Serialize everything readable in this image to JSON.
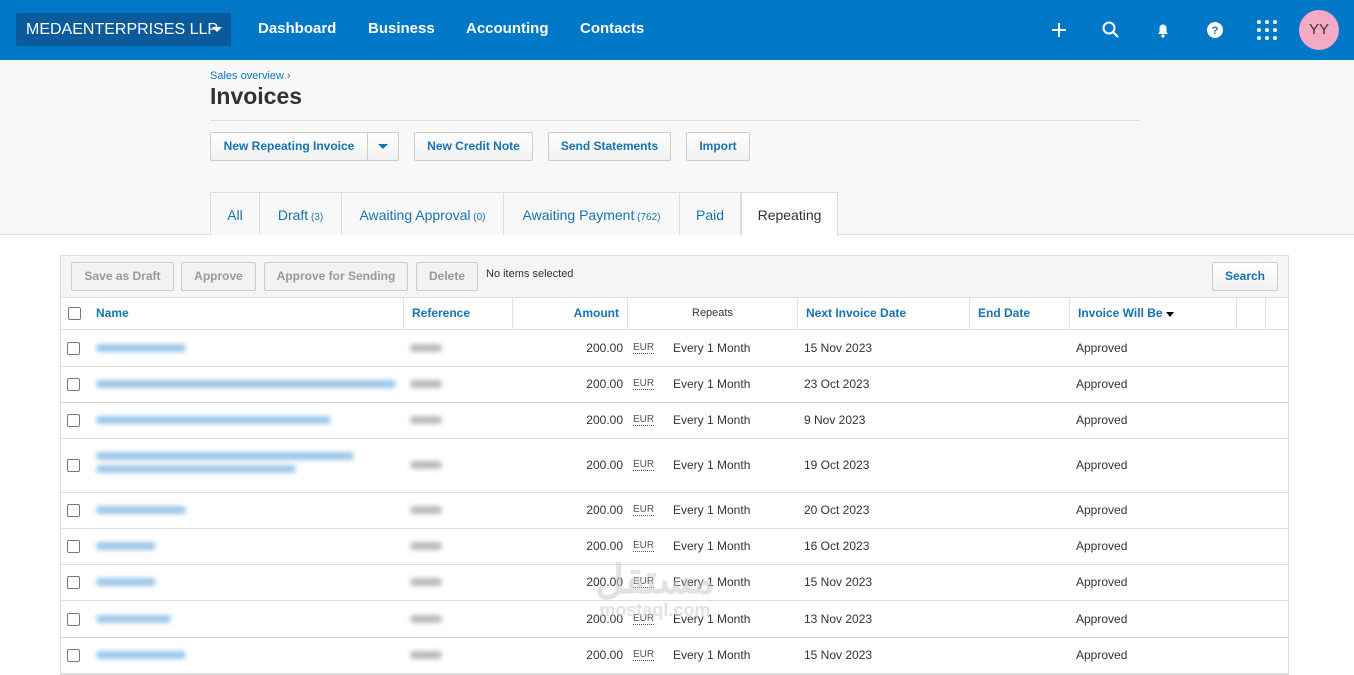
{
  "topbar": {
    "org": "MEDAENTERPRISES LLP",
    "nav": [
      "Dashboard",
      "Business",
      "Accounting",
      "Contacts"
    ],
    "avatar": "YY"
  },
  "breadcrumb": "Sales overview ›",
  "title": "Invoices",
  "actions": [
    "New Repeating Invoice",
    "New Credit Note",
    "Send Statements",
    "Import"
  ],
  "tabs": [
    {
      "label": "All"
    },
    {
      "label": "Draft",
      "count": "(3)"
    },
    {
      "label": "Awaiting Approval",
      "count": "(0)"
    },
    {
      "label": "Awaiting Payment",
      "count": "(762)"
    },
    {
      "label": "Paid"
    },
    {
      "label": "Repeating"
    }
  ],
  "toolbar": {
    "buttons": [
      "Save as Draft",
      "Approve",
      "Approve for Sending",
      "Delete"
    ],
    "status": "No items selected",
    "search": "Search"
  },
  "table": {
    "columns": [
      "Name",
      "Reference",
      "Amount",
      "Repeats",
      "Next Invoice Date",
      "End Date",
      "Invoice Will Be"
    ],
    "rows": [
      [
        "200.00",
        "EUR",
        "Every 1 Month",
        "15 Nov 2023",
        "Approved"
      ],
      [
        "200.00",
        "EUR",
        "Every 1 Month",
        "23 Oct 2023",
        "Approved"
      ],
      [
        "200.00",
        "EUR",
        "Every 1 Month",
        "9 Nov 2023",
        "Approved"
      ],
      [
        "200.00",
        "EUR",
        "Every 1 Month",
        "19 Oct 2023",
        "Approved"
      ],
      [
        "200.00",
        "EUR",
        "Every 1 Month",
        "20 Oct 2023",
        "Approved"
      ],
      [
        "200.00",
        "EUR",
        "Every 1 Month",
        "16 Oct 2023",
        "Approved"
      ],
      [
        "200.00",
        "EUR",
        "Every 1 Month",
        "15 Nov 2023",
        "Approved"
      ],
      [
        "200.00",
        "EUR",
        "Every 1 Month",
        "13 Nov 2023",
        "Approved"
      ],
      [
        "200.00",
        "EUR",
        "Every 1 Month",
        "15 Nov 2023",
        "Approved"
      ]
    ]
  },
  "watermark": {
    "arabic": "مستقل",
    "latin": "mostaql.com"
  }
}
